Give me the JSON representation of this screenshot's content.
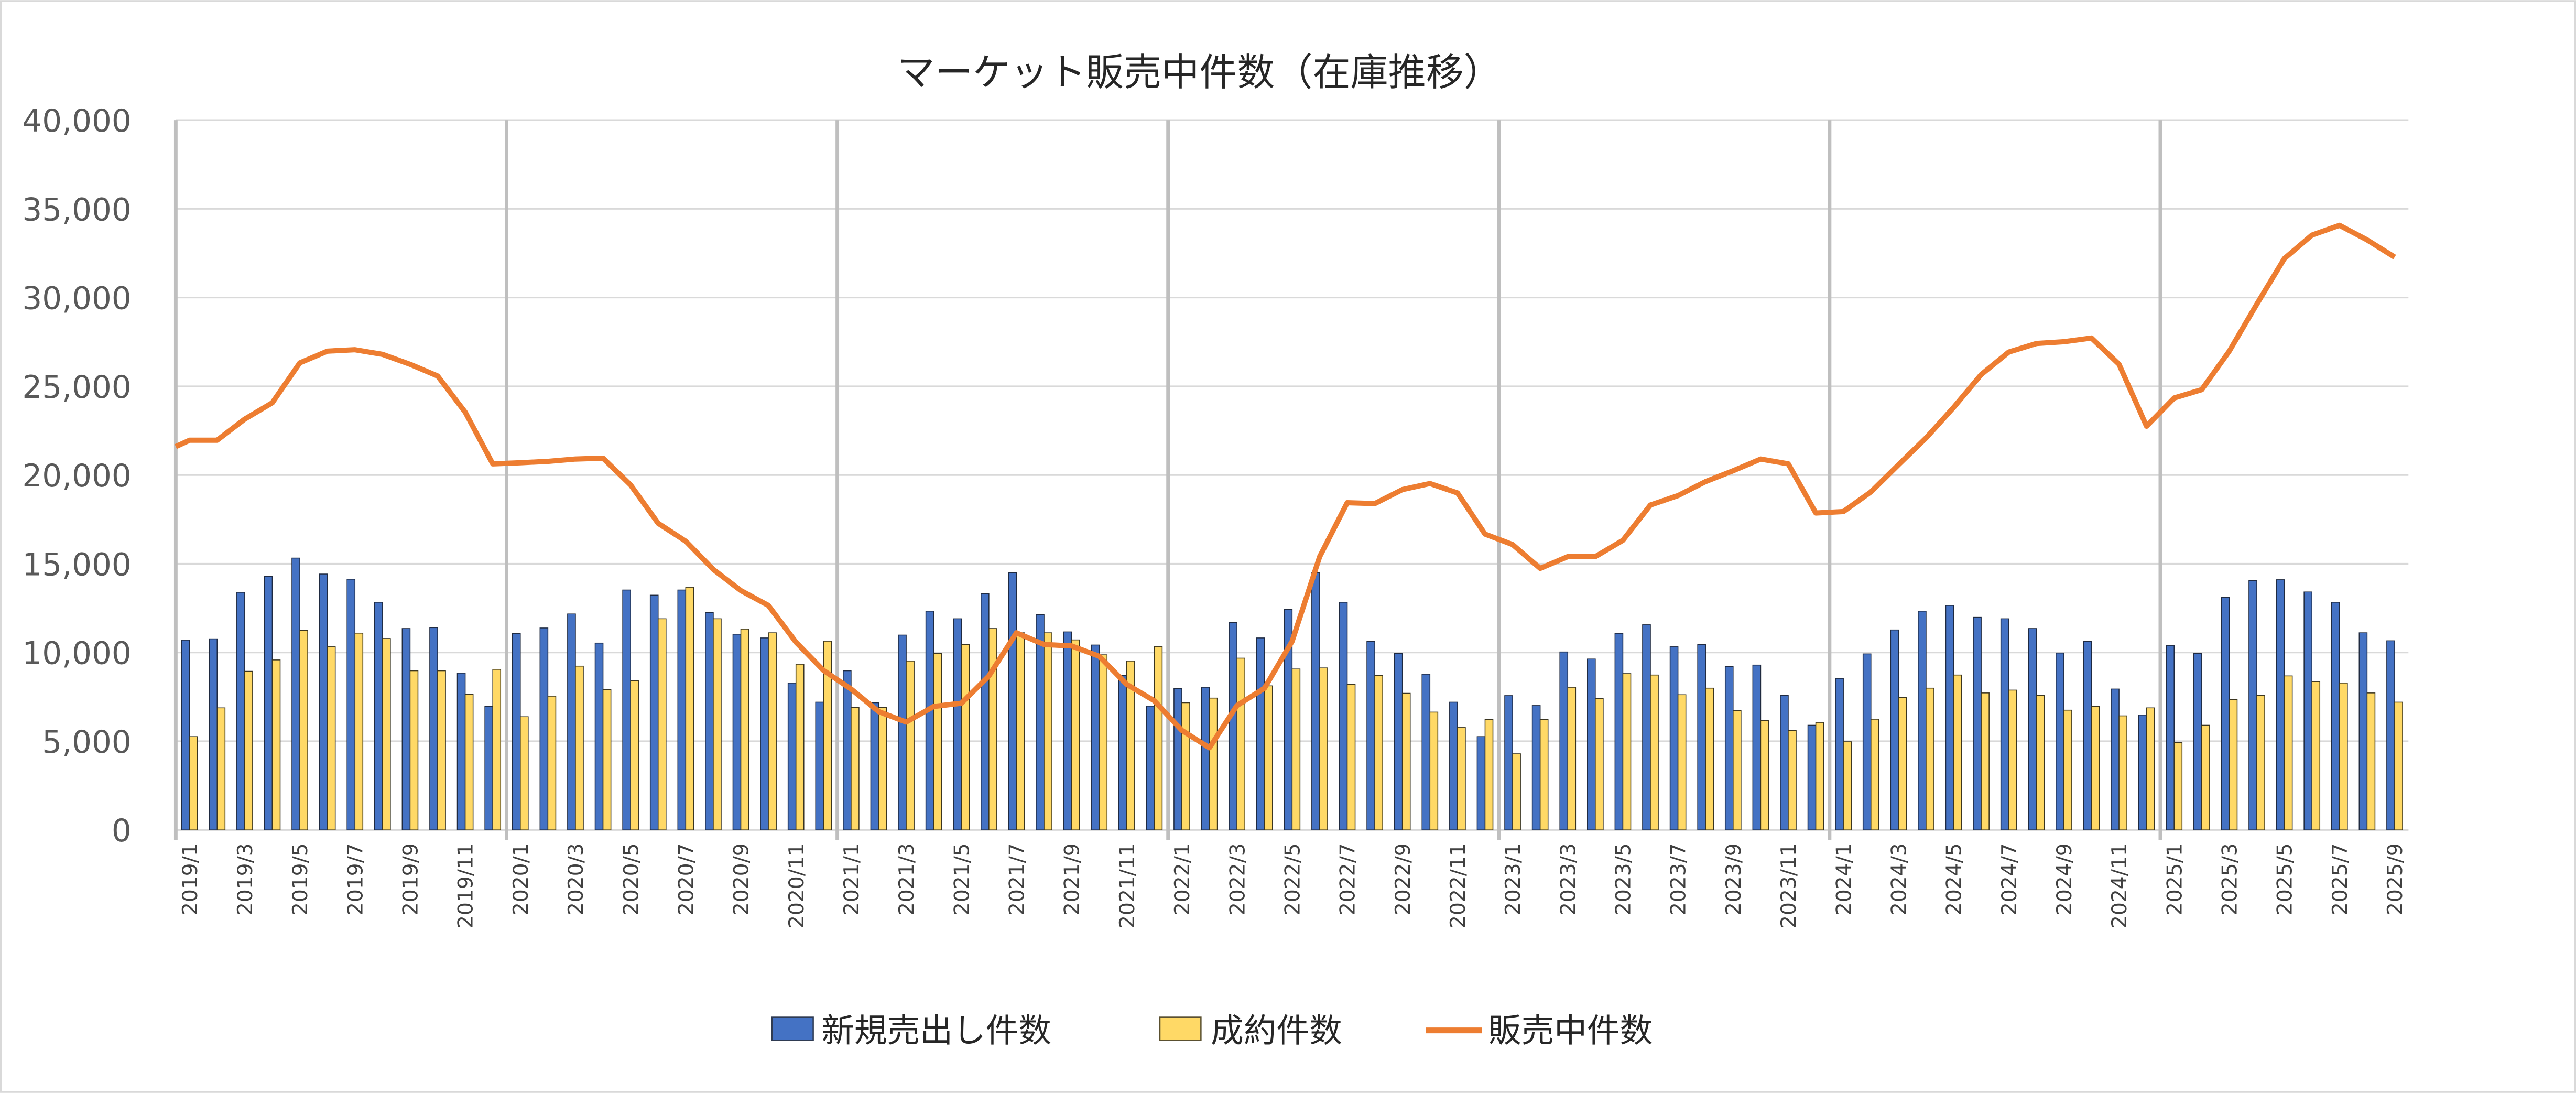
{
  "chart_data": {
    "type": "bar+line",
    "title": "マーケット販売中件数（在庫推移）",
    "xlabel": "",
    "ylabel": "",
    "x_start": "2019/1",
    "x_end": "2025/9",
    "x_interval": "monthly",
    "ylim": [
      0,
      40000
    ],
    "y_step": 5000,
    "grid": true,
    "legend_position": "bottom",
    "y_tick_labels": [
      "0",
      "5,000",
      "10,000",
      "15,000",
      "20,000",
      "25,000",
      "30,000",
      "35,000",
      "40,000"
    ],
    "x_tick_labels": [
      "2019/1",
      "2019/3",
      "2019/5",
      "2019/7",
      "2019/9",
      "2019/11",
      "2020/1",
      "2020/3",
      "2020/5",
      "2020/7",
      "2020/9",
      "2020/11",
      "2021/1",
      "2021/3",
      "2021/5",
      "2021/7",
      "2021/9",
      "2021/11",
      "2022/1",
      "2022/3",
      "2022/5",
      "2022/7",
      "2022/9",
      "2022/11",
      "2023/1",
      "2023/3",
      "2023/5",
      "2023/7",
      "2023/9",
      "2023/11",
      "2024/1",
      "2024/3",
      "2024/5",
      "2024/7",
      "2024/9",
      "2024/11",
      "2025/1",
      "2025/3",
      "2025/5",
      "2025/7",
      "2025/9"
    ],
    "series": [
      {
        "name": "新規売出し件数",
        "type": "bar",
        "color": "#4472C4",
        "values": [
          10700,
          10770,
          13390,
          14290,
          15320,
          14420,
          14130,
          12830,
          11350,
          11400,
          8840,
          6960,
          11060,
          11380,
          12170,
          10530,
          13520,
          13230,
          13520,
          12250,
          11030,
          10820,
          8280,
          7200,
          8970,
          7170,
          10980,
          12330,
          11900,
          13310,
          14500,
          12140,
          11160,
          10420,
          8700,
          6980,
          7960,
          8040,
          11690,
          10820,
          12430,
          14500,
          12830,
          10630,
          9950,
          8780,
          7200,
          5260,
          7570,
          7010,
          10030,
          9630,
          11080,
          11560,
          10320,
          10450,
          9210,
          9290,
          7590,
          5900,
          8540,
          9920,
          11270,
          12330,
          12650,
          11980,
          11900,
          11350,
          9970,
          10630,
          7940,
          6480,
          10400,
          9950,
          13100,
          14050,
          14100,
          13410,
          12830,
          11110,
          10660
        ]
      },
      {
        "name": "成約件数",
        "type": "bar",
        "color": "#FFD966",
        "values": [
          5260,
          6880,
          8940,
          9580,
          11240,
          10320,
          11090,
          10790,
          8970,
          8970,
          7650,
          9050,
          6380,
          7540,
          9230,
          7910,
          8410,
          11900,
          13680,
          11900,
          11320,
          11110,
          9340,
          10640,
          6900,
          6900,
          9520,
          9950,
          10450,
          11350,
          11110,
          11110,
          10710,
          9870,
          9520,
          10340,
          7170,
          7430,
          9680,
          8120,
          9070,
          9130,
          8200,
          8700,
          7700,
          6640,
          5770,
          6220,
          4290,
          6220,
          8040,
          7410,
          8810,
          8730,
          7620,
          7990,
          6720,
          6160,
          5610,
          6060,
          4970,
          6240,
          7460,
          7990,
          8730,
          7720,
          7880,
          7590,
          6750,
          6960,
          6430,
          6880,
          4920,
          5900,
          7350,
          7590,
          8680,
          8360,
          8280,
          7720,
          7200
        ]
      },
      {
        "name": "販売中件数",
        "type": "line",
        "color": "#ED7D31",
        "values": [
          21960,
          21960,
          23150,
          24070,
          26320,
          26980,
          27060,
          26800,
          26240,
          25580,
          23540,
          20630,
          20690,
          20770,
          20900,
          20950,
          19440,
          17280,
          16270,
          14680,
          13490,
          12650,
          10580,
          8990,
          7940,
          6670,
          6080,
          6960,
          7140,
          8680,
          11110,
          10450,
          10370,
          9790,
          8200,
          7280,
          5610,
          4630,
          7010,
          7990,
          10630,
          15400,
          18440,
          18390,
          19180,
          19520,
          18990,
          16670,
          16080,
          14740,
          15400,
          15400,
          16320,
          18310,
          18840,
          19630,
          20240,
          20900,
          20630,
          17860,
          17940,
          19050,
          20580,
          22090,
          23810,
          25660,
          26930,
          27410,
          27510,
          27720,
          26240,
          22750,
          24340,
          24810,
          26980,
          29630,
          32200,
          33520,
          34070,
          33250,
          32280
        ]
      }
    ]
  }
}
